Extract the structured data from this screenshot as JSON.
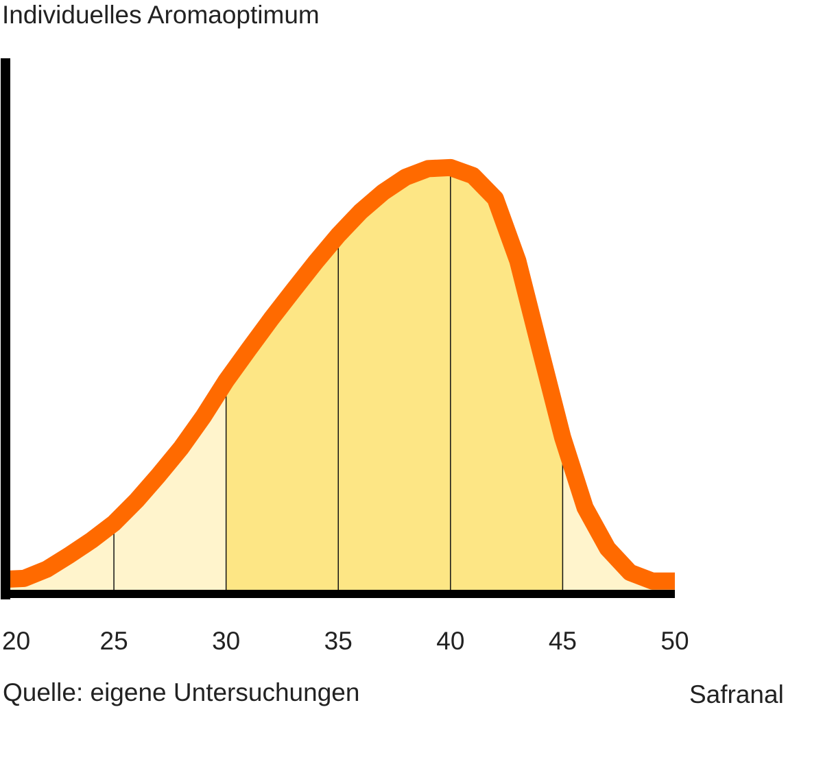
{
  "chart_data": {
    "type": "area",
    "title": "Individuelles Aromaoptimum",
    "xlabel": "Safranal",
    "source": "Quelle: eigene Untersuchungen",
    "x": [
      20,
      21,
      22,
      23,
      24,
      25,
      26,
      27,
      28,
      29,
      30,
      31,
      32,
      33,
      34,
      35,
      36,
      37,
      38,
      39,
      40,
      41,
      42,
      43,
      44,
      45,
      46,
      47,
      48,
      49,
      50
    ],
    "values": [
      2.7,
      2.9,
      4.6,
      7.2,
      10.0,
      13.2,
      17.4,
      22.2,
      27.3,
      33.2,
      39.8,
      45.6,
      51.3,
      56.7,
      62.0,
      67.0,
      71.4,
      75.0,
      77.8,
      79.4,
      79.6,
      78.1,
      73.8,
      62.2,
      45.6,
      29.2,
      16.1,
      8.5,
      4.0,
      2.4,
      2.4
    ],
    "color": "#ff6a00",
    "fill": "#fff4cc",
    "highlight": [
      30,
      45
    ],
    "highlight_color": "#fde685",
    "xlim": [
      20,
      50
    ],
    "xticks": [
      20,
      25,
      30,
      35,
      40,
      45,
      50
    ],
    "ylim": [
      0,
      100
    ],
    "grid": true
  }
}
